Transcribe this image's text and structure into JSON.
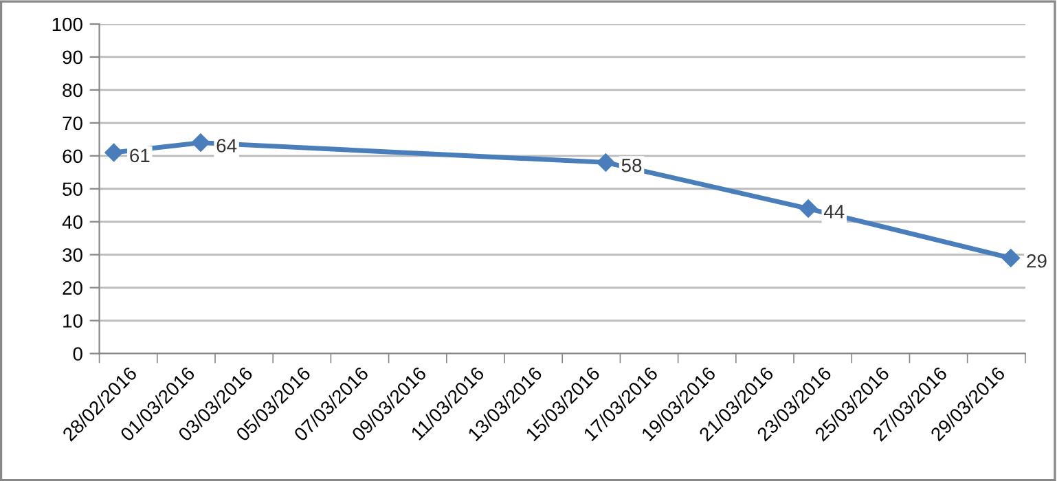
{
  "chart_data": {
    "type": "line",
    "x": [
      "2016-02-28",
      "2016-03-02",
      "2016-03-16",
      "2016-03-23",
      "2016-03-30"
    ],
    "series": [
      {
        "color": "#4a7ebb",
        "values": [
          61,
          64,
          58,
          44,
          29
        ]
      }
    ],
    "xlim": [
      "2016-02-27T12:00",
      "2016-03-30T12:00"
    ],
    "xticks": [
      {
        "value": "2016-02-28T12:00",
        "label": "28/02/2016"
      },
      {
        "value": "2016-03-01T12:00",
        "label": "01/03/2016"
      },
      {
        "value": "2016-03-03T12:00",
        "label": "03/03/2016"
      },
      {
        "value": "2016-03-05T12:00",
        "label": "05/03/2016"
      },
      {
        "value": "2016-03-07T12:00",
        "label": "07/03/2016"
      },
      {
        "value": "2016-03-09T12:00",
        "label": "09/03/2016"
      },
      {
        "value": "2016-03-11T12:00",
        "label": "11/03/2016"
      },
      {
        "value": "2016-03-13T12:00",
        "label": "13/03/2016"
      },
      {
        "value": "2016-03-15T12:00",
        "label": "15/03/2016"
      },
      {
        "value": "2016-03-17T12:00",
        "label": "17/03/2016"
      },
      {
        "value": "2016-03-19T12:00",
        "label": "19/03/2016"
      },
      {
        "value": "2016-03-21T12:00",
        "label": "21/03/2016"
      },
      {
        "value": "2016-03-23T12:00",
        "label": "23/03/2016"
      },
      {
        "value": "2016-03-25T12:00",
        "label": "25/03/2016"
      },
      {
        "value": "2016-03-27T12:00",
        "label": "27/03/2016"
      },
      {
        "value": "2016-03-29T12:00",
        "label": "29/03/2016"
      }
    ],
    "ylim": [
      0,
      100
    ],
    "yticks": [
      0,
      10,
      20,
      30,
      40,
      50,
      60,
      70,
      80,
      90,
      100
    ],
    "grid": "y",
    "marker": "diamond",
    "line_style": "solid",
    "data_labels": true
  }
}
